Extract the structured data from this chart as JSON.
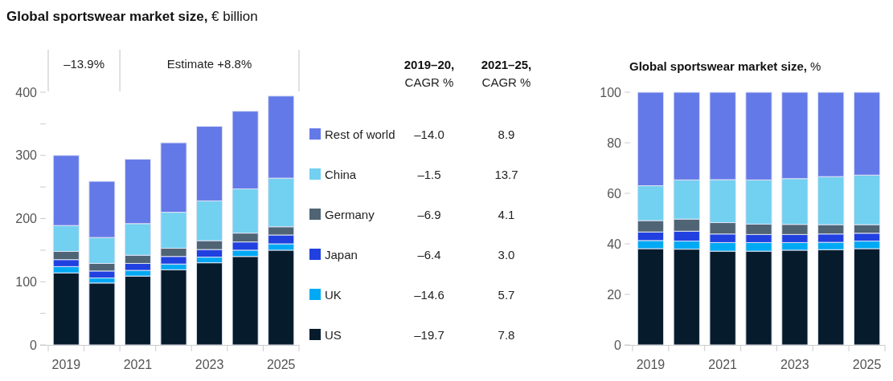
{
  "chart_data": [
    {
      "type": "bar",
      "title": "Global sportswear market size, € billion",
      "categories": [
        "2019",
        null,
        "2021",
        null,
        "2023",
        null,
        "2025"
      ],
      "stacked": true,
      "ylim": [
        0,
        400
      ],
      "yticks": [
        0,
        {
          "value": 50,
          "label": null
        },
        100,
        {
          "value": 150,
          "label": null
        },
        200,
        {
          "value": 250,
          "label": null
        },
        300,
        {
          "value": 350,
          "label": null
        },
        400
      ],
      "legend": "right",
      "annotations": [
        "–13.9%",
        "Estimate +8.8%"
      ],
      "series": [
        {
          "name": "US",
          "color": "#061c2c",
          "values": [
            114,
            98,
            109,
            119,
            130,
            140,
            150
          ]
        },
        {
          "name": "UK",
          "color": "#00a9f4",
          "values": [
            10,
            8,
            9,
            9,
            9,
            10,
            10
          ]
        },
        {
          "name": "Japan",
          "color": "#2040e0",
          "values": [
            11,
            11,
            11,
            12,
            12,
            13,
            14
          ]
        },
        {
          "name": "Germany",
          "color": "#4f6474",
          "values": [
            13,
            12,
            13,
            13,
            14,
            14,
            13
          ]
        },
        {
          "name": "China",
          "color": "#72d0f0",
          "values": [
            41,
            41,
            50,
            57,
            63,
            70,
            77
          ]
        },
        {
          "name": "Rest of world",
          "color": "#6479e8",
          "values": [
            111,
            89,
            102,
            110,
            118,
            123,
            130
          ]
        }
      ]
    },
    {
      "type": "other",
      "annotations": [
        "2019–20,",
        "2021–25,",
        "CAGR %",
        "CAGR %",
        "–14.0",
        "8.9",
        "–1.5",
        "13.7",
        "–6.9",
        "4.1",
        "–6.4",
        "3.0",
        "–14.6",
        "5.7",
        "–19.7",
        "7.8"
      ]
    },
    {
      "type": "bar",
      "title": "Global sportswear market size, %",
      "categories": [
        "2019",
        null,
        "2021",
        null,
        "2023",
        null,
        "2025"
      ],
      "stacked": true,
      "ylim": [
        0,
        100
      ],
      "yticks": [
        0,
        20,
        40,
        60,
        80,
        100
      ],
      "series": [
        {
          "color": "#061c2c",
          "values": [
            38.1,
            37.9,
            37.1,
            37.1,
            37.5,
            37.7,
            38.1
          ]
        },
        {
          "color": "#00a9f4",
          "values": [
            3.2,
            3.2,
            3.4,
            3.4,
            3.0,
            2.9,
            3.0
          ]
        },
        {
          "color": "#2040e0",
          "values": [
            3.4,
            3.9,
            3.4,
            3.2,
            3.2,
            3.3,
            3.1
          ]
        },
        {
          "color": "#4f6474",
          "values": [
            4.5,
            4.8,
            4.5,
            4.1,
            4.0,
            3.7,
            3.4
          ]
        },
        {
          "color": "#72d0f0",
          "values": [
            13.8,
            15.5,
            17.0,
            17.5,
            18.1,
            19.0,
            19.6
          ]
        },
        {
          "color": "#6479e8",
          "values": [
            37.0,
            34.7,
            34.6,
            34.7,
            34.2,
            33.4,
            32.8
          ]
        }
      ]
    }
  ]
}
